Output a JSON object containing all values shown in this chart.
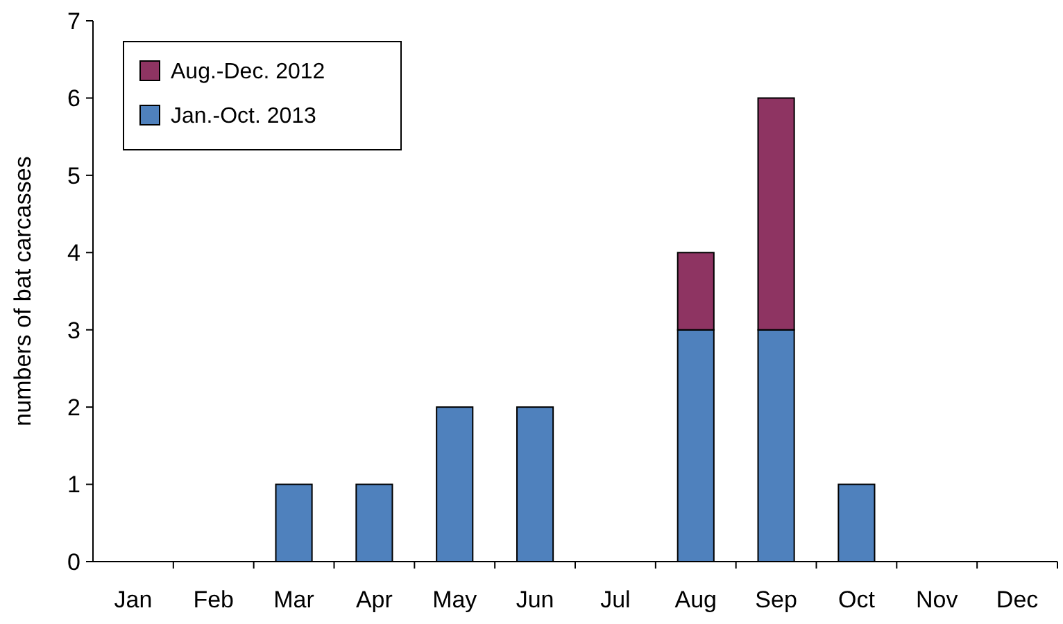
{
  "chart_data": {
    "type": "bar",
    "ylabel": "numbers of bat carcasses",
    "categories": [
      "Jan",
      "Feb",
      "Mar",
      "Apr",
      "May",
      "Jun",
      "Jul",
      "Aug",
      "Sep",
      "Oct",
      "Nov",
      "Dec"
    ],
    "stacked": true,
    "ylim": [
      0,
      7
    ],
    "yticks": [
      0,
      1,
      2,
      3,
      4,
      5,
      6,
      7
    ],
    "grid": false,
    "legend": "top left",
    "series": [
      {
        "name": "Jan.-Oct. 2013",
        "color": "#4f81bd",
        "values": [
          0,
          0,
          1,
          1,
          2,
          2,
          0,
          3,
          3,
          1,
          0,
          0
        ]
      },
      {
        "name": "Aug.-Dec. 2012",
        "color": "#8e3462",
        "values": [
          0,
          0,
          0,
          0,
          0,
          0,
          0,
          1,
          3,
          0,
          0,
          0
        ]
      }
    ]
  }
}
